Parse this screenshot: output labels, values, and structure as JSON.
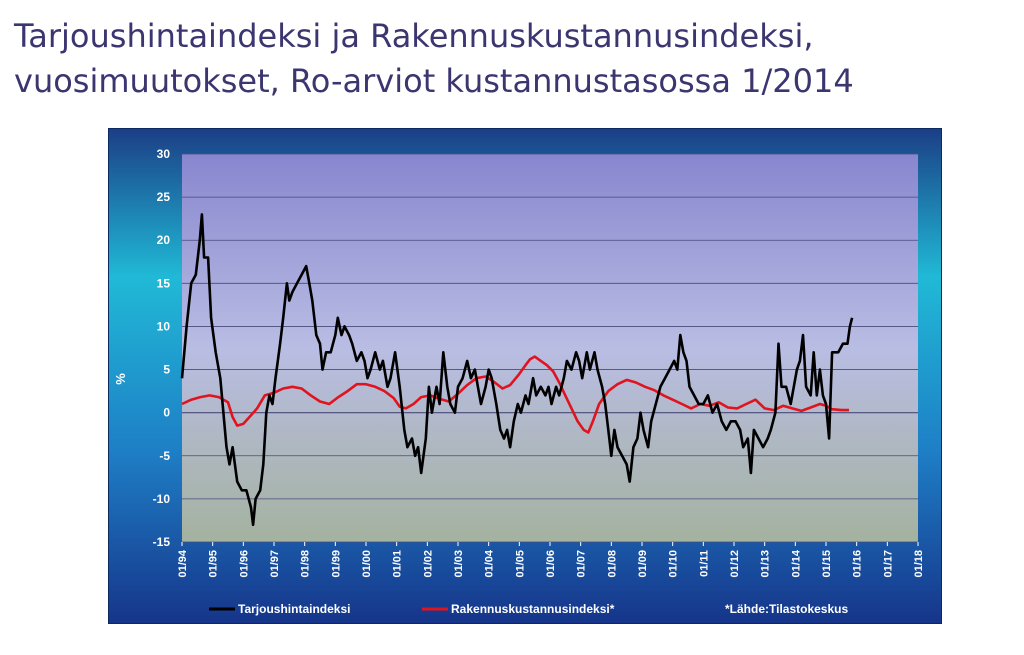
{
  "slide": {
    "title_line1": "Tarjoushintaindeksi ja Rakennuskustannusindeksi,",
    "title_line2": "vuosimuutokset, Ro-arviot kustannustasossa 1/2014"
  },
  "colors": {
    "background_top": "#1b3f86",
    "background_mid": "#20b9d6",
    "plot_top": "#8b8ad2",
    "plot_bottom": "#a9b6a6",
    "gridline": "#4a4a7a",
    "series_black": "#000000",
    "series_red": "#e0141e"
  },
  "chart_data": {
    "type": "line",
    "ylabel": "%",
    "xlabel": "",
    "ylim": [
      -15,
      30
    ],
    "yticks": [
      30,
      25,
      20,
      15,
      10,
      5,
      0,
      -5,
      -10,
      -15
    ],
    "grid": true,
    "legend_position": "bottom",
    "x_range": [
      1994.0,
      2018.0
    ],
    "x_tick_labels": [
      "01/94",
      "01/95",
      "01/96",
      "01/97",
      "01/98",
      "01/99",
      "01/00",
      "01/01",
      "01/02",
      "01/03",
      "01/04",
      "01/05",
      "01/06",
      "01/07",
      "01/08",
      "01/09",
      "01/10",
      "01/11",
      "01/12",
      "01/13",
      "01/14",
      "01/15",
      "01/16",
      "01/17",
      "01/18"
    ],
    "x_tick_years": [
      1994,
      1995,
      1996,
      1997,
      1998,
      1999,
      2000,
      2001,
      2002,
      2003,
      2004,
      2005,
      2006,
      2007,
      2008,
      2009,
      2010,
      2011,
      2012,
      2013,
      2014,
      2015,
      2016,
      2017,
      2018
    ],
    "series": [
      {
        "name": "Tarjoushintaindeksi",
        "color": "#000000",
        "points": [
          [
            1994.0,
            4
          ],
          [
            1994.15,
            10
          ],
          [
            1994.3,
            15
          ],
          [
            1994.45,
            16
          ],
          [
            1994.58,
            20
          ],
          [
            1994.65,
            23
          ],
          [
            1994.72,
            18
          ],
          [
            1994.85,
            18
          ],
          [
            1994.95,
            11
          ],
          [
            1995.1,
            7
          ],
          [
            1995.25,
            4
          ],
          [
            1995.45,
            -4
          ],
          [
            1995.55,
            -6
          ],
          [
            1995.65,
            -4
          ],
          [
            1995.8,
            -8
          ],
          [
            1995.95,
            -9
          ],
          [
            1996.1,
            -9
          ],
          [
            1996.25,
            -11
          ],
          [
            1996.32,
            -13
          ],
          [
            1996.4,
            -10
          ],
          [
            1996.55,
            -9
          ],
          [
            1996.65,
            -6
          ],
          [
            1996.75,
            0
          ],
          [
            1996.85,
            2
          ],
          [
            1996.95,
            1
          ],
          [
            1997.05,
            4
          ],
          [
            1997.2,
            8
          ],
          [
            1997.3,
            11
          ],
          [
            1997.42,
            15
          ],
          [
            1997.5,
            13
          ],
          [
            1997.6,
            14
          ],
          [
            1997.75,
            15
          ],
          [
            1997.9,
            16
          ],
          [
            1998.05,
            17
          ],
          [
            1998.15,
            15
          ],
          [
            1998.25,
            13
          ],
          [
            1998.38,
            9
          ],
          [
            1998.5,
            8
          ],
          [
            1998.58,
            5
          ],
          [
            1998.7,
            7
          ],
          [
            1998.85,
            7
          ],
          [
            1999.0,
            9
          ],
          [
            1999.08,
            11
          ],
          [
            1999.2,
            9
          ],
          [
            1999.3,
            10
          ],
          [
            1999.45,
            9
          ],
          [
            1999.55,
            8
          ],
          [
            1999.7,
            6
          ],
          [
            1999.85,
            7
          ],
          [
            1999.95,
            6
          ],
          [
            2000.05,
            4
          ],
          [
            2000.15,
            5
          ],
          [
            2000.3,
            7
          ],
          [
            2000.45,
            5
          ],
          [
            2000.55,
            6
          ],
          [
            2000.7,
            3
          ],
          [
            2000.8,
            4
          ],
          [
            2000.95,
            7
          ],
          [
            2001.1,
            3
          ],
          [
            2001.25,
            -2
          ],
          [
            2001.35,
            -4
          ],
          [
            2001.5,
            -3
          ],
          [
            2001.6,
            -5
          ],
          [
            2001.7,
            -4
          ],
          [
            2001.8,
            -7
          ],
          [
            2001.95,
            -3
          ],
          [
            2002.05,
            3
          ],
          [
            2002.15,
            0
          ],
          [
            2002.3,
            3
          ],
          [
            2002.4,
            1
          ],
          [
            2002.52,
            7
          ],
          [
            2002.65,
            3
          ],
          [
            2002.75,
            1
          ],
          [
            2002.9,
            0
          ],
          [
            2003.0,
            3
          ],
          [
            2003.15,
            4
          ],
          [
            2003.3,
            6
          ],
          [
            2003.42,
            4
          ],
          [
            2003.55,
            5
          ],
          [
            2003.65,
            3
          ],
          [
            2003.75,
            1
          ],
          [
            2003.9,
            3
          ],
          [
            2004.0,
            5
          ],
          [
            2004.1,
            4
          ],
          [
            2004.25,
            1
          ],
          [
            2004.38,
            -2
          ],
          [
            2004.5,
            -3
          ],
          [
            2004.6,
            -2
          ],
          [
            2004.7,
            -4
          ],
          [
            2004.82,
            -1
          ],
          [
            2004.95,
            1
          ],
          [
            2005.05,
            0
          ],
          [
            2005.2,
            2
          ],
          [
            2005.3,
            1
          ],
          [
            2005.45,
            4
          ],
          [
            2005.55,
            2
          ],
          [
            2005.7,
            3
          ],
          [
            2005.85,
            2
          ],
          [
            2005.95,
            3
          ],
          [
            2006.05,
            1
          ],
          [
            2006.2,
            3
          ],
          [
            2006.3,
            2
          ],
          [
            2006.45,
            4
          ],
          [
            2006.55,
            6
          ],
          [
            2006.7,
            5
          ],
          [
            2006.85,
            7
          ],
          [
            2006.95,
            6
          ],
          [
            2007.05,
            4
          ],
          [
            2007.2,
            7
          ],
          [
            2007.3,
            5
          ],
          [
            2007.45,
            7
          ],
          [
            2007.55,
            5
          ],
          [
            2007.7,
            3
          ],
          [
            2007.8,
            1
          ],
          [
            2007.9,
            -2
          ],
          [
            2008.0,
            -5
          ],
          [
            2008.1,
            -2
          ],
          [
            2008.2,
            -4
          ],
          [
            2008.35,
            -5
          ],
          [
            2008.5,
            -6
          ],
          [
            2008.6,
            -8
          ],
          [
            2008.72,
            -4
          ],
          [
            2008.85,
            -3
          ],
          [
            2008.95,
            0
          ],
          [
            2009.05,
            -2
          ],
          [
            2009.2,
            -4
          ],
          [
            2009.3,
            -1
          ],
          [
            2009.45,
            1
          ],
          [
            2009.6,
            3
          ],
          [
            2009.75,
            4
          ],
          [
            2009.9,
            5
          ],
          [
            2010.05,
            6
          ],
          [
            2010.15,
            5
          ],
          [
            2010.25,
            9
          ],
          [
            2010.35,
            7
          ],
          [
            2010.45,
            6
          ],
          [
            2010.55,
            3
          ],
          [
            2010.7,
            2
          ],
          [
            2010.85,
            1
          ],
          [
            2011.0,
            1
          ],
          [
            2011.15,
            2
          ],
          [
            2011.3,
            0
          ],
          [
            2011.45,
            1
          ],
          [
            2011.6,
            -1
          ],
          [
            2011.75,
            -2
          ],
          [
            2011.9,
            -1
          ],
          [
            2012.05,
            -1
          ],
          [
            2012.2,
            -2
          ],
          [
            2012.3,
            -4
          ],
          [
            2012.45,
            -3
          ],
          [
            2012.55,
            -7
          ],
          [
            2012.65,
            -2
          ],
          [
            2012.8,
            -3
          ],
          [
            2012.95,
            -4
          ],
          [
            2013.1,
            -3
          ],
          [
            2013.2,
            -2
          ],
          [
            2013.35,
            0
          ],
          [
            2013.45,
            8
          ],
          [
            2013.55,
            3
          ],
          [
            2013.7,
            3
          ],
          [
            2013.85,
            1
          ],
          [
            2013.95,
            3
          ],
          [
            2014.05,
            5
          ],
          [
            2014.15,
            6
          ],
          [
            2014.25,
            9
          ],
          [
            2014.35,
            3
          ],
          [
            2014.5,
            2
          ],
          [
            2014.6,
            7
          ],
          [
            2014.7,
            2
          ],
          [
            2014.8,
            5
          ],
          [
            2014.9,
            2
          ],
          [
            2015.0,
            1
          ],
          [
            2015.1,
            -3
          ],
          [
            2015.2,
            7
          ],
          [
            2015.4,
            7
          ],
          [
            2015.55,
            8
          ],
          [
            2015.7,
            8
          ],
          [
            2015.78,
            10
          ],
          [
            2015.85,
            11
          ]
        ]
      },
      {
        "name": "Rakennuskustannusindeksi*",
        "color": "#e0141e",
        "points": [
          [
            1994.0,
            1
          ],
          [
            1994.3,
            1.5
          ],
          [
            1994.6,
            1.8
          ],
          [
            1994.9,
            2
          ],
          [
            1995.2,
            1.8
          ],
          [
            1995.5,
            1.2
          ],
          [
            1995.65,
            -0.5
          ],
          [
            1995.8,
            -1.5
          ],
          [
            1996.0,
            -1.3
          ],
          [
            1996.2,
            -0.5
          ],
          [
            1996.45,
            0.5
          ],
          [
            1996.7,
            2
          ],
          [
            1997.0,
            2.3
          ],
          [
            1997.3,
            2.8
          ],
          [
            1997.6,
            3
          ],
          [
            1997.9,
            2.8
          ],
          [
            1998.2,
            2
          ],
          [
            1998.5,
            1.3
          ],
          [
            1998.8,
            1
          ],
          [
            1999.1,
            1.8
          ],
          [
            1999.4,
            2.5
          ],
          [
            1999.7,
            3.3
          ],
          [
            2000.0,
            3.3
          ],
          [
            2000.3,
            3
          ],
          [
            2000.6,
            2.5
          ],
          [
            2000.9,
            1.7
          ],
          [
            2001.1,
            0.7
          ],
          [
            2001.3,
            0.5
          ],
          [
            2001.55,
            1
          ],
          [
            2001.8,
            1.8
          ],
          [
            2002.1,
            2
          ],
          [
            2002.4,
            1.6
          ],
          [
            2002.7,
            1.3
          ],
          [
            2003.0,
            2.2
          ],
          [
            2003.3,
            3.2
          ],
          [
            2003.6,
            4
          ],
          [
            2003.9,
            4.2
          ],
          [
            2004.2,
            3.5
          ],
          [
            2004.45,
            2.8
          ],
          [
            2004.7,
            3.2
          ],
          [
            2005.0,
            4.5
          ],
          [
            2005.2,
            5.5
          ],
          [
            2005.35,
            6.2
          ],
          [
            2005.5,
            6.5
          ],
          [
            2005.7,
            6
          ],
          [
            2005.9,
            5.5
          ],
          [
            2006.1,
            4.8
          ],
          [
            2006.3,
            3.5
          ],
          [
            2006.5,
            2
          ],
          [
            2006.7,
            0.5
          ],
          [
            2006.9,
            -1
          ],
          [
            2007.1,
            -2
          ],
          [
            2007.25,
            -2.3
          ],
          [
            2007.4,
            -1
          ],
          [
            2007.6,
            1
          ],
          [
            2007.9,
            2.5
          ],
          [
            2008.2,
            3.3
          ],
          [
            2008.5,
            3.8
          ],
          [
            2008.8,
            3.5
          ],
          [
            2009.1,
            3
          ],
          [
            2009.4,
            2.6
          ],
          [
            2009.7,
            2
          ],
          [
            2010.0,
            1.5
          ],
          [
            2010.3,
            1
          ],
          [
            2010.6,
            0.5
          ],
          [
            2010.9,
            1
          ],
          [
            2011.2,
            0.8
          ],
          [
            2011.5,
            1.2
          ],
          [
            2011.8,
            0.6
          ],
          [
            2012.1,
            0.5
          ],
          [
            2012.4,
            1
          ],
          [
            2012.7,
            1.5
          ],
          [
            2013.0,
            0.5
          ],
          [
            2013.3,
            0.3
          ],
          [
            2013.6,
            0.8
          ],
          [
            2013.9,
            0.5
          ],
          [
            2014.2,
            0.2
          ],
          [
            2014.5,
            0.6
          ],
          [
            2014.8,
            1
          ],
          [
            2015.0,
            0.8
          ],
          [
            2015.2,
            0.4
          ],
          [
            2015.5,
            0.3
          ],
          [
            2015.75,
            0.3
          ]
        ]
      }
    ],
    "legend": [
      {
        "label": "Tarjoushintaindeksi",
        "color": "#000000"
      },
      {
        "label": "Rakennuskustannusindeksi*",
        "color": "#e0141e"
      }
    ],
    "source_note": "*Lähde:Tilastokeskus"
  }
}
